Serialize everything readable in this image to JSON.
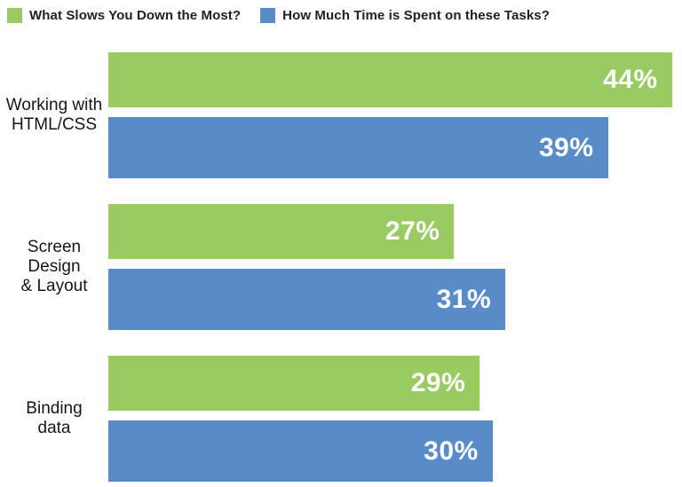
{
  "chart_data": {
    "type": "bar",
    "orientation": "horizontal",
    "title": "",
    "xlabel": "",
    "ylabel": "",
    "grid": false,
    "legend_position": "top",
    "value_labels": "inside-end",
    "value_suffix": "%",
    "xmax": 44.3,
    "categories": [
      "Working with HTML/CSS",
      "Screen Design & Layout",
      "Binding data"
    ],
    "category_lines": [
      [
        "Working with",
        "HTML/CSS"
      ],
      [
        "Screen",
        "Design",
        "& Layout"
      ],
      [
        "Binding",
        "data"
      ]
    ],
    "series": [
      {
        "name": "What Slows You Down the Most?",
        "color": "#9ACB62",
        "values": [
          44,
          27,
          29
        ]
      },
      {
        "name": "How Much Time is Spent on these Tasks?",
        "color": "#5A8BC9",
        "values": [
          39,
          31,
          30
        ]
      }
    ],
    "colors": {
      "value_label": "#ffffff",
      "category_label": "#161616",
      "legend_label": "#212121",
      "background": "#ffffff"
    }
  }
}
